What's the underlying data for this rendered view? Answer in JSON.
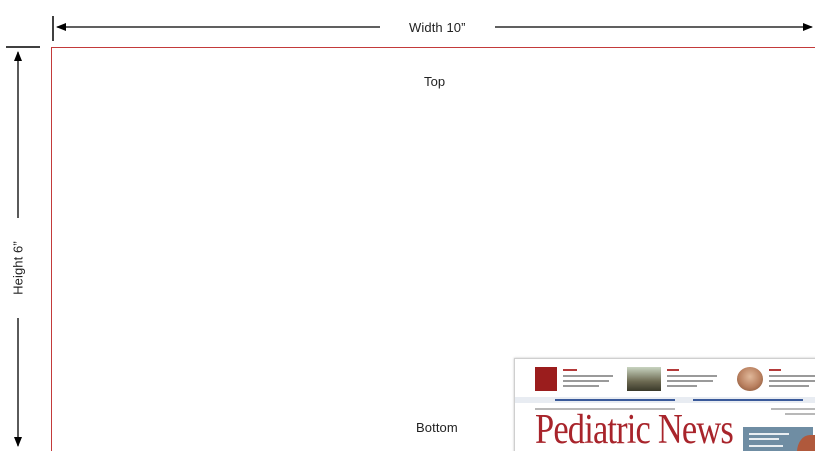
{
  "diagram": {
    "width_label": "Width 10”",
    "height_label": "Height 6”",
    "top_label": "Top",
    "bottom_label": "Bottom",
    "frame_color": "#c33a3a",
    "arrow_color": "#000000",
    "thumbnail": {
      "masthead": "Pediatric News",
      "masthead_color": "#a8242b"
    }
  }
}
